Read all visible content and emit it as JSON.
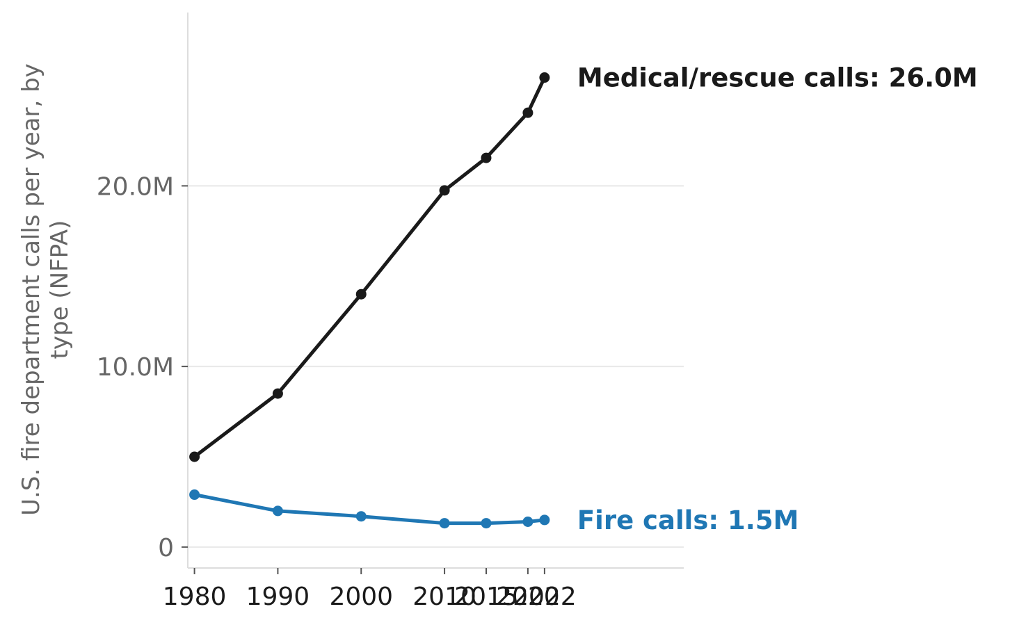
{
  "chart_data": {
    "type": "line",
    "ylabel_lines": [
      "U.S. fire department calls per year, by",
      "type (NFPA)"
    ],
    "xlabel": "",
    "x": [
      1980,
      1990,
      2000,
      2010,
      2015,
      2020,
      2022
    ],
    "x_tick_labels": [
      "1980",
      "1990",
      "2000",
      "2010",
      "2015",
      "2020",
      "2022"
    ],
    "y_ticks": [
      0,
      10000000,
      20000000
    ],
    "y_tick_labels": [
      "0",
      "10.0M",
      "20.0M"
    ],
    "xlim": [
      1979.2,
      2038.7
    ],
    "ylim": [
      -1160000,
      29600000
    ],
    "grid": "horizontal",
    "series": [
      {
        "name": "Medical/rescue calls",
        "end_label": "Medical/rescue calls: 26.0M",
        "color": "#1a1a1a",
        "values": [
          5000000,
          8500000,
          14000000,
          19750000,
          21550000,
          24050000,
          26000000
        ]
      },
      {
        "name": "Fire calls",
        "end_label": "Fire calls: 1.5M",
        "color": "#1f77b4",
        "values": [
          2900000,
          2000000,
          1700000,
          1320000,
          1320000,
          1400000,
          1500000
        ]
      }
    ]
  }
}
